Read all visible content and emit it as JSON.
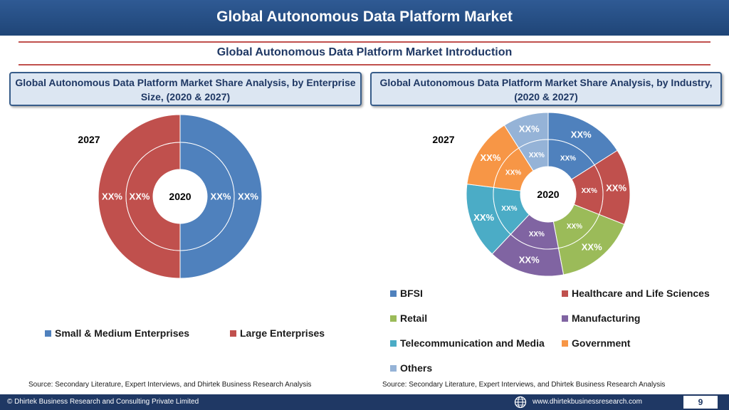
{
  "header": {
    "title": "Global Autonomous Data Platform Market"
  },
  "intro": {
    "title": "Global Autonomous Data Platform Market  Introduction"
  },
  "panels": {
    "left_title": "Global Autonomous Data Platform Market  Share Analysis, by Enterprise Size, (2020 & 2027)",
    "right_title": "Global Autonomous Data Platform Market  Share Analysis, by Industry, (2020 & 2027)"
  },
  "chart_data": [
    {
      "type": "pie",
      "variant": "doughnut",
      "title": "Global Autonomous Data Platform Market  Share Analysis, by Enterprise Size, (2020 & 2027)",
      "outer_ring_label": "2027",
      "inner_ring_label": "2020",
      "categories": [
        "Small & Medium Enterprises",
        "Large Enterprises"
      ],
      "colors": [
        "#4f81bd",
        "#c0504d"
      ],
      "series": [
        {
          "name": "2027",
          "values": [
            50,
            50
          ],
          "labels": [
            "XX%",
            "XX%"
          ]
        },
        {
          "name": "2020",
          "values": [
            50,
            50
          ],
          "labels": [
            "XX%",
            "XX%"
          ]
        }
      ],
      "legend_position": "bottom"
    },
    {
      "type": "pie",
      "variant": "doughnut",
      "title": "Global Autonomous Data Platform Market  Share Analysis, by Industry, (2020 & 2027)",
      "outer_ring_label": "2027",
      "inner_ring_label": "2020",
      "categories": [
        "BFSI",
        "Healthcare and Life Sciences",
        "Retail",
        "Manufacturing",
        "Telecommunication and Media",
        "Government",
        "Others"
      ],
      "colors": [
        "#4f81bd",
        "#c0504d",
        "#9bbb59",
        "#8064a2",
        "#4bacc6",
        "#f79646",
        "#95b3d7"
      ],
      "series": [
        {
          "name": "2027",
          "values": [
            16,
            15,
            16,
            15,
            15,
            14,
            9
          ],
          "labels": [
            "XX%",
            "XX%",
            "XX%",
            "XX%",
            "XX%",
            "XX%",
            "XX%"
          ]
        },
        {
          "name": "2020",
          "values": [
            16,
            15,
            16,
            15,
            15,
            14,
            9
          ],
          "labels": [
            "XX%",
            "XX%",
            "XX%",
            "XX%",
            "XX%",
            "XX%",
            "XX%"
          ]
        }
      ],
      "legend_position": "bottom"
    }
  ],
  "sources": {
    "left": "Source: Secondary Literature, Expert Interviews, and Dhirtek Business Research Analysis",
    "right": "Source: Secondary Literature, Expert Interviews, and Dhirtek Business Research Analysis"
  },
  "footer": {
    "copyright": "© Dhirtek Business Research and Consulting Private Limited",
    "website": "www.dhirtekbusinessresearch.com",
    "page": "9",
    "icon": "globe-icon"
  }
}
